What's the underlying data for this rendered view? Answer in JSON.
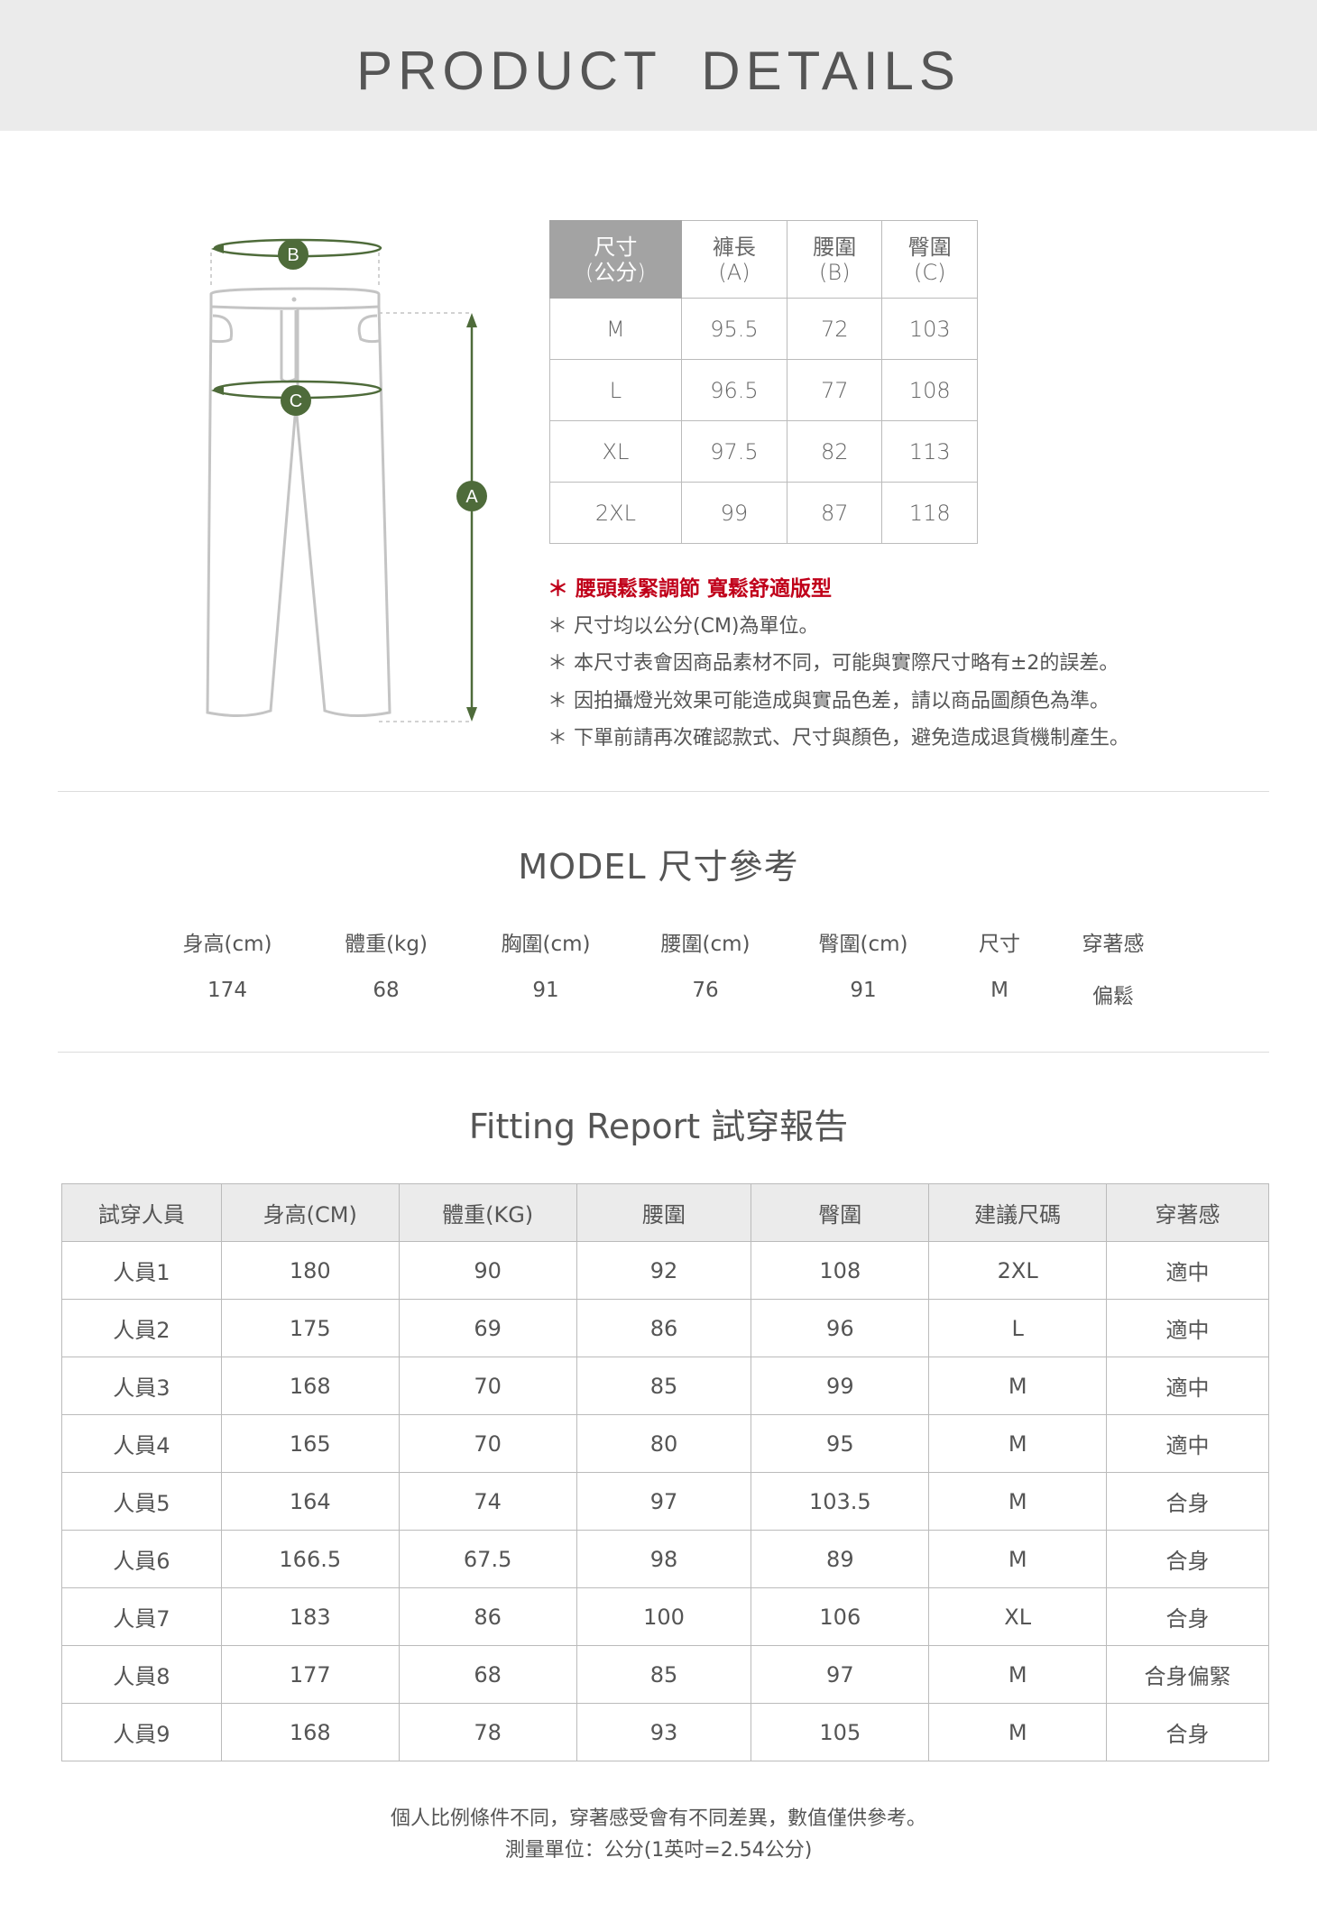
{
  "header": {
    "title": "PRODUCT DETAILS"
  },
  "diagram": {
    "labels": {
      "a": "A",
      "b": "B",
      "c": "C"
    },
    "accent": "#4e6b3a"
  },
  "size_table": {
    "headers": [
      [
        "尺寸",
        "(公分)"
      ],
      [
        "褲長",
        "(A)"
      ],
      [
        "腰圍",
        "(B)"
      ],
      [
        "臀圍",
        "(C)"
      ]
    ],
    "rows": [
      [
        "M",
        "95.5",
        "72",
        "103"
      ],
      [
        "L",
        "96.5",
        "77",
        "108"
      ],
      [
        "XL",
        "97.5",
        "82",
        "113"
      ],
      [
        "2XL",
        "99",
        "87",
        "118"
      ]
    ]
  },
  "notes": [
    "＊ 腰頭鬆緊調節 寬鬆舒適版型",
    "＊ 尺寸均以公分(CM)為單位。",
    "＊ 本尺寸表會因商品素材不同，可能與實際尺寸略有±2的誤差。",
    "＊ 因拍攝燈光效果可能造成與實品色差，請以商品圖顏色為準。",
    "＊ 下單前請再次確認款式、尺寸與顏色，避免造成退貨機制產生。"
  ],
  "model": {
    "title": "MODEL 尺寸參考",
    "headers": [
      "身高(cm)",
      "體重(kg)",
      "胸圍(cm)",
      "腰圍(cm)",
      "臀圍(cm)",
      "尺寸",
      "穿著感"
    ],
    "values": [
      "174",
      "68",
      "91",
      "76",
      "91",
      "M",
      "偏鬆"
    ]
  },
  "fitting": {
    "title": "Fitting Report 試穿報告",
    "headers": [
      "試穿人員",
      "身高(CM)",
      "體重(KG)",
      "腰圍",
      "臀圍",
      "建議尺碼",
      "穿著感"
    ],
    "rows": [
      [
        "人員1",
        "180",
        "90",
        "92",
        "108",
        "2XL",
        "適中"
      ],
      [
        "人員2",
        "175",
        "69",
        "86",
        "96",
        "L",
        "適中"
      ],
      [
        "人員3",
        "168",
        "70",
        "85",
        "99",
        "M",
        "適中"
      ],
      [
        "人員4",
        "165",
        "70",
        "80",
        "95",
        "M",
        "適中"
      ],
      [
        "人員5",
        "164",
        "74",
        "97",
        "103.5",
        "M",
        "合身"
      ],
      [
        "人員6",
        "166.5",
        "67.5",
        "98",
        "89",
        "M",
        "合身"
      ],
      [
        "人員7",
        "183",
        "86",
        "100",
        "106",
        "XL",
        "合身"
      ],
      [
        "人員8",
        "177",
        "68",
        "85",
        "97",
        "M",
        "合身偏緊"
      ],
      [
        "人員9",
        "168",
        "78",
        "93",
        "105",
        "M",
        "合身"
      ]
    ]
  },
  "footer": [
    "個人比例條件不同，穿著感受會有不同差異，數值僅供參考。",
    "測量單位：公分(1英吋=2.54公分)"
  ]
}
